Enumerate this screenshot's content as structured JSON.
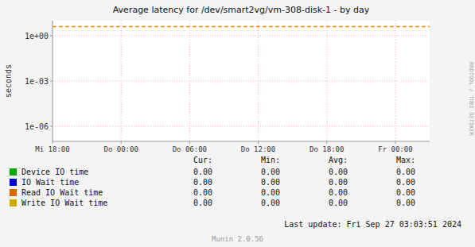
{
  "chart_data": {
    "type": "line",
    "title": "Average latency for /dev/smart2vg/vm-308-disk-1 - by day",
    "y_label": "seconds",
    "log": "y",
    "grid": true,
    "legend": "bottom",
    "xlim": [
      0,
      33
    ],
    "xticks": [
      {
        "value": 0,
        "label": "Mi 18:00"
      },
      {
        "value": 6,
        "label": "Do 00:00"
      },
      {
        "value": 12,
        "label": "Do 06:00"
      },
      {
        "value": 18,
        "label": "Do 12:00"
      },
      {
        "value": 24,
        "label": "Do 18:00"
      },
      {
        "value": 30,
        "label": "Fr 00:00"
      }
    ],
    "ylim": [
      1e-07,
      10.0
    ],
    "yticks": [
      {
        "value": 1e-06,
        "label": "1e-06"
      },
      {
        "value": 0.001,
        "label": "1e-03"
      },
      {
        "value": 1,
        "label": "1e+00"
      }
    ],
    "reference_lines": [
      {
        "y": 4.0,
        "color": "#ff8800",
        "line_style": "dashed"
      }
    ],
    "table_headers": [
      "Cur:",
      "Min:",
      "Avg:",
      "Max:"
    ],
    "series": [
      {
        "name": "Device IO time",
        "color": "#00aa00",
        "stats": [
          {
            "value": 0,
            "label": "0.00"
          },
          {
            "value": 0,
            "label": "0.00"
          },
          {
            "value": 0,
            "label": "0.00"
          },
          {
            "value": 0,
            "label": "0.00"
          }
        ]
      },
      {
        "name": "IO Wait time",
        "color": "#0000cc",
        "stats": [
          {
            "value": 0,
            "label": "0.00"
          },
          {
            "value": 0,
            "label": "0.00"
          },
          {
            "value": 0,
            "label": "0.00"
          },
          {
            "value": 0,
            "label": "0.00"
          }
        ]
      },
      {
        "name": "Read IO Wait time",
        "color": "#dd6600",
        "stats": [
          {
            "value": 0,
            "label": "0.00"
          },
          {
            "value": 0,
            "label": "0.00"
          },
          {
            "value": 0,
            "label": "0.00"
          },
          {
            "value": 0,
            "label": "0.00"
          }
        ]
      },
      {
        "name": "Write IO Wait time",
        "color": "#ccaa00",
        "stats": [
          {
            "value": 0,
            "label": "0.00"
          },
          {
            "value": 0,
            "label": "0.00"
          },
          {
            "value": 0,
            "label": "0.00"
          },
          {
            "value": 0,
            "label": "0.00"
          }
        ]
      }
    ],
    "annotations": [
      "Last update: Fri Sep 27 03:03:51 2024",
      "Munin 2.0.56",
      "RRDTOOL / TOBI OETIKER"
    ]
  }
}
